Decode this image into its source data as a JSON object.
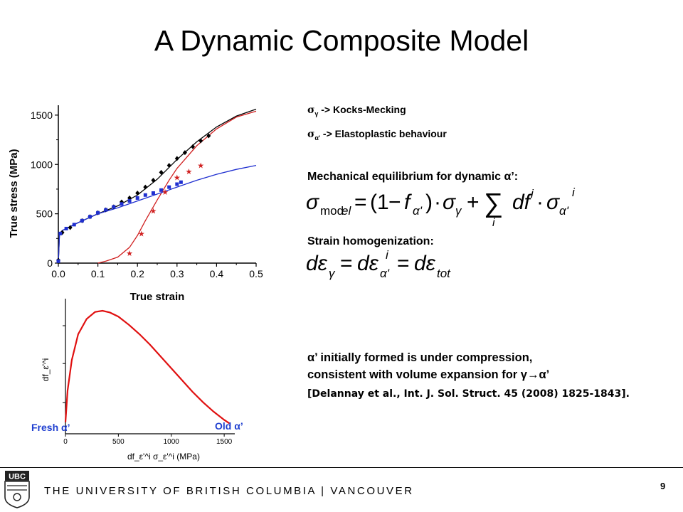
{
  "title": "A Dynamic Composite Model",
  "chart_data": [
    {
      "type": "line",
      "xlabel": "True strain",
      "ylabel": "True stress (MPa)",
      "xlim": [
        0,
        0.5
      ],
      "ylim": [
        0,
        1600
      ],
      "xticks": [
        "0.0",
        "0.1",
        "0.2",
        "0.3",
        "0.4",
        "0.5"
      ],
      "yticks": [
        "0",
        "500",
        "1000",
        "1500"
      ],
      "series": [
        {
          "color": "#000000",
          "style": "line",
          "x": [
            0.0,
            0.003,
            0.01,
            0.05,
            0.1,
            0.15,
            0.2,
            0.25,
            0.3,
            0.35,
            0.4,
            0.45,
            0.5
          ],
          "y": [
            0,
            300,
            330,
            410,
            500,
            580,
            690,
            850,
            1050,
            1230,
            1380,
            1490,
            1560
          ]
        },
        {
          "color": "#d02020",
          "style": "line",
          "x": [
            0.1,
            0.12,
            0.15,
            0.18,
            0.2,
            0.22,
            0.25,
            0.28,
            0.3,
            0.35,
            0.4,
            0.45,
            0.5
          ],
          "y": [
            0,
            20,
            60,
            160,
            280,
            430,
            640,
            840,
            960,
            1190,
            1360,
            1480,
            1540
          ]
        },
        {
          "color": "#1f2fd0",
          "style": "line",
          "x": [
            0.0,
            0.003,
            0.01,
            0.05,
            0.1,
            0.15,
            0.2,
            0.25,
            0.3,
            0.35,
            0.4,
            0.45,
            0.5
          ],
          "y": [
            0,
            300,
            330,
            410,
            500,
            560,
            630,
            700,
            770,
            840,
            900,
            950,
            990
          ]
        },
        {
          "color": "#000000",
          "style": "marker",
          "marker": "diamond",
          "x": [
            0.0,
            0.01,
            0.03,
            0.06,
            0.08,
            0.1,
            0.12,
            0.14,
            0.16,
            0.18,
            0.2,
            0.22,
            0.24,
            0.26,
            0.28,
            0.3,
            0.32,
            0.34,
            0.36,
            0.38
          ],
          "y": [
            30,
            310,
            360,
            430,
            470,
            510,
            540,
            570,
            620,
            660,
            710,
            770,
            840,
            920,
            990,
            1060,
            1120,
            1180,
            1240,
            1290
          ]
        },
        {
          "color": "#1f2fd0",
          "style": "marker",
          "marker": "square",
          "x": [
            0.0,
            0.005,
            0.02,
            0.04,
            0.06,
            0.08,
            0.1,
            0.12,
            0.14,
            0.16,
            0.18,
            0.2,
            0.22,
            0.24,
            0.26,
            0.28,
            0.3,
            0.31
          ],
          "y": [
            20,
            300,
            350,
            390,
            430,
            470,
            510,
            540,
            570,
            600,
            630,
            660,
            690,
            710,
            740,
            770,
            800,
            820
          ]
        },
        {
          "color": "#d02020",
          "style": "marker",
          "marker": "star",
          "x": [
            0.18,
            0.21,
            0.24,
            0.27,
            0.3,
            0.33,
            0.36
          ],
          "y": [
            100,
            300,
            530,
            720,
            870,
            930,
            990
          ]
        }
      ]
    },
    {
      "type": "line",
      "xlabel": "df_ε'^i σ_ε'^i (MPa)",
      "ylabel": "df_ε'^i",
      "xlim": [
        0,
        1600
      ],
      "xticks": [
        "0",
        "500",
        "1000",
        "1500"
      ],
      "series": [
        {
          "color": "#e01010",
          "x": [
            0,
            20,
            60,
            120,
            200,
            280,
            350,
            420,
            500,
            600,
            700,
            800,
            900,
            1000,
            1100,
            1200,
            1300,
            1400,
            1500,
            1550
          ],
          "y": [
            0.05,
            0.32,
            0.58,
            0.8,
            0.93,
            0.99,
            1.0,
            0.985,
            0.95,
            0.88,
            0.8,
            0.71,
            0.61,
            0.51,
            0.41,
            0.31,
            0.22,
            0.14,
            0.07,
            0.04
          ]
        }
      ],
      "annotations": {
        "fresh": "Fresh α’",
        "old": "Old α’"
      }
    }
  ],
  "right": {
    "line1_sub": "γ",
    "line1_text": " -> Kocks-Mecking",
    "line2_sub": "α'",
    "line2_text": " -> Elastoplastic behaviour",
    "mech_heading": "Mechanical equilibrium for dynamic α’:",
    "strain_heading": "Strain homogenization:",
    "note1": "α’ initially formed is under compression,",
    "note2": "consistent with volume expansion for γ→α’",
    "reference": "[Delannay et al., Int. J. Sol. Struct. 45 (2008) 1825-1843]."
  },
  "footer": {
    "logo_text": "UBC",
    "university": "THE UNIVERSITY OF BRITISH COLUMBIA | VANCOUVER",
    "page_number": "9"
  }
}
